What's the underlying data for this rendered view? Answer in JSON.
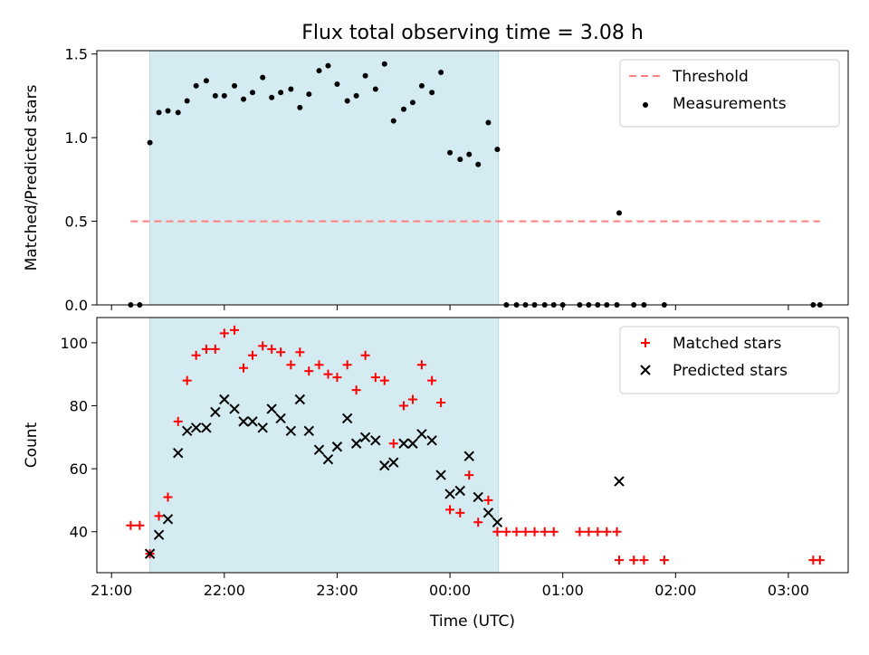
{
  "figure": {
    "title": "Flux total observing time = 3.08 h",
    "xlabel": "Time (UTC)"
  },
  "chart_data": [
    {
      "type": "scatter",
      "panel": "top",
      "title": "Flux total observing time = 3.08 h",
      "ylabel": "Matched/Predicted stars",
      "ylim": [
        0,
        1.52
      ],
      "yticks": [
        0.0,
        0.5,
        1.0,
        1.5
      ],
      "ytick_labels": [
        "0.0",
        "0.5",
        "1.0",
        "1.5"
      ],
      "xlim": [
        -0.13,
        6.53
      ],
      "xticks": [
        0,
        1,
        2,
        3,
        4,
        5,
        6
      ],
      "x_unit": "hours after 21:00 UTC",
      "shaded_interval": [
        0.34,
        3.43
      ],
      "shade_color": "#d4ebf1",
      "legend": {
        "placement": "top-right",
        "entries": [
          "Threshold",
          "Measurements"
        ]
      },
      "series": [
        {
          "name": "Threshold",
          "kind": "dashed-line",
          "color": "#ff7f7f",
          "x": [
            0.17,
            6.28
          ],
          "y": [
            0.5,
            0.5
          ]
        },
        {
          "name": "Measurements",
          "kind": "dots",
          "color": "#000000",
          "x": [
            0.17,
            0.25,
            0.34,
            0.42,
            0.5,
            0.59,
            0.67,
            0.75,
            0.84,
            0.92,
            1.0,
            1.09,
            1.17,
            1.25,
            1.34,
            1.42,
            1.5,
            1.59,
            1.67,
            1.75,
            1.84,
            1.92,
            2.0,
            2.09,
            2.17,
            2.25,
            2.34,
            2.42,
            2.5,
            2.59,
            2.67,
            2.75,
            2.84,
            2.92,
            3.0,
            3.09,
            3.17,
            3.25,
            3.34,
            3.42,
            3.5,
            3.59,
            3.67,
            3.75,
            3.84,
            3.92,
            4.0,
            4.15,
            4.23,
            4.31,
            4.39,
            4.48,
            4.5,
            4.63,
            4.72,
            4.9,
            6.22,
            6.28
          ],
          "y": [
            0,
            0,
            0.97,
            1.15,
            1.16,
            1.15,
            1.22,
            1.31,
            1.34,
            1.25,
            1.25,
            1.31,
            1.23,
            1.27,
            1.36,
            1.24,
            1.27,
            1.29,
            1.18,
            1.26,
            1.4,
            1.43,
            1.32,
            1.22,
            1.25,
            1.37,
            1.29,
            1.44,
            1.1,
            1.17,
            1.21,
            1.31,
            1.27,
            1.39,
            0.91,
            0.87,
            0.9,
            0.84,
            1.09,
            0.93,
            0,
            0,
            0,
            0,
            0,
            0,
            0,
            0,
            0,
            0,
            0,
            0,
            0.55,
            0,
            0,
            0,
            0,
            0
          ]
        }
      ]
    },
    {
      "type": "scatter",
      "panel": "bottom",
      "ylabel": "Count",
      "ylim": [
        27,
        108
      ],
      "yticks": [
        40,
        60,
        80,
        100
      ],
      "ytick_labels": [
        "40",
        "60",
        "80",
        "100"
      ],
      "xlim": [
        -0.13,
        6.53
      ],
      "xticks": [
        0,
        1,
        2,
        3,
        4,
        5,
        6
      ],
      "xtick_labels": [
        "21:00",
        "22:00",
        "23:00",
        "00:00",
        "01:00",
        "02:00",
        "03:00"
      ],
      "xlabel": "Time (UTC)",
      "shaded_interval": [
        0.34,
        3.43
      ],
      "shade_color": "#d4ebf1",
      "legend": {
        "placement": "top-right",
        "entries": [
          "Matched stars",
          "Predicted stars"
        ]
      },
      "series": [
        {
          "name": "Matched stars",
          "kind": "plus",
          "color": "#ff0000",
          "x": [
            0.17,
            0.25,
            0.34,
            0.42,
            0.5,
            0.59,
            0.67,
            0.75,
            0.84,
            0.92,
            1.0,
            1.09,
            1.17,
            1.25,
            1.34,
            1.42,
            1.5,
            1.59,
            1.67,
            1.75,
            1.84,
            1.92,
            2.0,
            2.09,
            2.17,
            2.25,
            2.34,
            2.42,
            2.5,
            2.59,
            2.67,
            2.75,
            2.84,
            2.92,
            3.0,
            3.09,
            3.17,
            3.25,
            3.34,
            3.42,
            3.5,
            3.59,
            3.67,
            3.75,
            3.84,
            3.92,
            4.15,
            4.23,
            4.31,
            4.39,
            4.48,
            4.5,
            4.63,
            4.72,
            4.9,
            6.22,
            6.28
          ],
          "y": [
            42,
            42,
            33,
            45,
            51,
            75,
            88,
            96,
            98,
            98,
            103,
            104,
            92,
            96,
            99,
            98,
            97,
            93,
            97,
            91,
            93,
            90,
            89,
            93,
            85,
            96,
            89,
            88,
            68,
            80,
            82,
            93,
            88,
            81,
            47,
            46,
            58,
            43,
            50,
            40,
            40,
            40,
            40,
            40,
            40,
            40,
            40,
            40,
            40,
            40,
            40,
            31,
            31,
            31,
            31,
            31,
            31
          ]
        },
        {
          "name": "Predicted stars",
          "kind": "x",
          "color": "#000000",
          "x": [
            0.34,
            0.42,
            0.5,
            0.59,
            0.67,
            0.75,
            0.84,
            0.92,
            1.0,
            1.09,
            1.17,
            1.25,
            1.34,
            1.42,
            1.5,
            1.59,
            1.67,
            1.75,
            1.84,
            1.92,
            2.0,
            2.09,
            2.17,
            2.25,
            2.34,
            2.42,
            2.5,
            2.59,
            2.67,
            2.75,
            2.84,
            2.92,
            3.0,
            3.09,
            3.17,
            3.25,
            3.34,
            3.42,
            4.5
          ],
          "y": [
            33,
            39,
            44,
            65,
            72,
            73,
            73,
            78,
            82,
            79,
            75,
            75,
            73,
            79,
            76,
            72,
            82,
            72,
            66,
            63,
            67,
            76,
            68,
            70,
            69,
            61,
            62,
            68,
            68,
            71,
            69,
            58,
            52,
            53,
            64,
            51,
            46,
            43,
            56
          ]
        }
      ]
    }
  ]
}
